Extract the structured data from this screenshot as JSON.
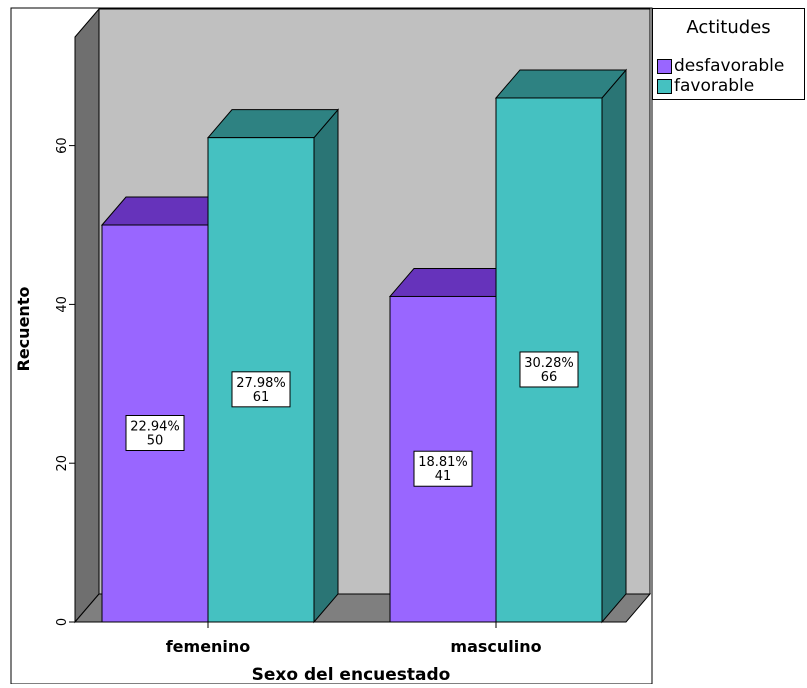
{
  "chart_data": {
    "type": "bar",
    "categories": [
      "femenino",
      "masculino"
    ],
    "series": [
      {
        "name": "desfavorable",
        "values": [
          50,
          41
        ],
        "percents": [
          "22.94%",
          "18.81%"
        ],
        "color": "#9966ff",
        "top_color": "#6633bb",
        "side_color": "#5a2fa0"
      },
      {
        "name": "favorable",
        "values": [
          61,
          66
        ],
        "percents": [
          "27.98%",
          "30.28%"
        ],
        "color": "#45c1c1",
        "top_color": "#2e8282",
        "side_color": "#2a7575"
      }
    ],
    "xlabel": "Sexo del encuestado",
    "ylabel": "Recuento",
    "ylim": [
      0,
      75
    ],
    "yticks": [
      0,
      20,
      40,
      60
    ],
    "legend": {
      "title": "Actitudes",
      "position": "top-right"
    },
    "grid": false,
    "background_color": "#c0c0c0",
    "floor_color": "#7f7f7f",
    "side_wall_color": "#6f6f6f"
  }
}
